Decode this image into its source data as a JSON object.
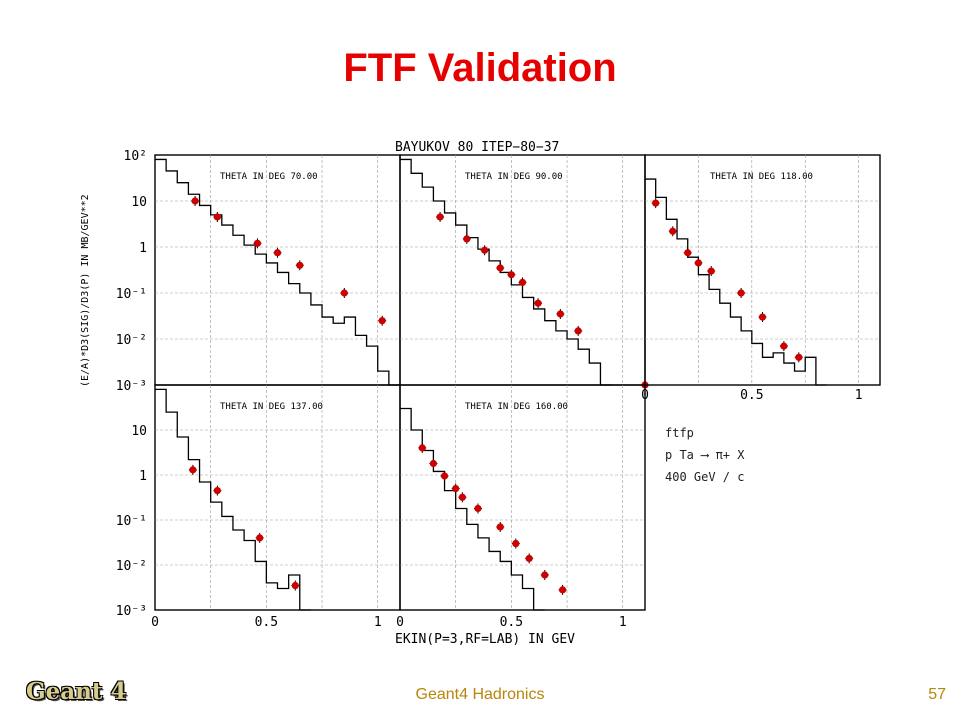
{
  "slide": {
    "title": "FTF Validation",
    "logo": "Geant 4",
    "footer": "Geant4 Hadronics",
    "page_number": "57"
  },
  "chart_data": {
    "type": "scatter",
    "header": "BAYUKOV 80    ITEP−80−37",
    "ylabel": "(E/A)*D3(SIG)/D3(P) IN MB/GEV**2",
    "xlabel": "EKIN(P=3,RF=LAB) IN GEV",
    "y_log_scale": true,
    "ylim": [
      0.001,
      100
    ],
    "xlim": [
      0,
      1.1
    ],
    "y_tick_labels": [
      "10²",
      "10",
      "1",
      "10⁻¹",
      "10⁻²",
      "10⁻³"
    ],
    "x_tick_labels": [
      "0",
      "0.5",
      "1"
    ],
    "grid": true,
    "legend": {
      "position": "bottom-right",
      "lines": [
        "ftfp",
        "p Ta  ⟶  π+ X",
        "400 GeV / c"
      ]
    },
    "colors": {
      "data_points": "#cc0000",
      "model": "#000000",
      "grid": "#9a9a9a"
    },
    "panels": [
      {
        "label": "THETA IN DEG   70.00",
        "data": [
          [
            0.18,
            10
          ],
          [
            0.28,
            4.5
          ],
          [
            0.46,
            1.2
          ],
          [
            0.55,
            0.75
          ],
          [
            0.65,
            0.4
          ],
          [
            0.85,
            0.1
          ],
          [
            1.02,
            0.025
          ]
        ],
        "model": [
          [
            0,
            80
          ],
          [
            0.05,
            45
          ],
          [
            0.1,
            25
          ],
          [
            0.15,
            14
          ],
          [
            0.2,
            8
          ],
          [
            0.25,
            5
          ],
          [
            0.3,
            3
          ],
          [
            0.35,
            1.8
          ],
          [
            0.4,
            1.1
          ],
          [
            0.45,
            0.7
          ],
          [
            0.5,
            0.45
          ],
          [
            0.55,
            0.28
          ],
          [
            0.6,
            0.16
          ],
          [
            0.65,
            0.1
          ],
          [
            0.7,
            0.055
          ],
          [
            0.75,
            0.03
          ],
          [
            0.8,
            0.022
          ],
          [
            0.85,
            0.03
          ],
          [
            0.9,
            0.012
          ],
          [
            0.95,
            0.007
          ],
          [
            1.0,
            0.002
          ],
          [
            1.05,
            0.001
          ]
        ]
      },
      {
        "label": "THETA IN DEG   90.00",
        "data": [
          [
            0.18,
            4.5
          ],
          [
            0.3,
            1.5
          ],
          [
            0.38,
            0.85
          ],
          [
            0.45,
            0.35
          ],
          [
            0.5,
            0.25
          ],
          [
            0.55,
            0.17
          ],
          [
            0.62,
            0.06
          ],
          [
            0.72,
            0.035
          ],
          [
            0.8,
            0.015
          ],
          [
            1.1,
            0.001
          ]
        ],
        "model": [
          [
            0,
            80
          ],
          [
            0.05,
            40
          ],
          [
            0.1,
            20
          ],
          [
            0.15,
            10
          ],
          [
            0.2,
            5.5
          ],
          [
            0.25,
            3
          ],
          [
            0.3,
            1.6
          ],
          [
            0.35,
            0.9
          ],
          [
            0.4,
            0.5
          ],
          [
            0.45,
            0.28
          ],
          [
            0.5,
            0.15
          ],
          [
            0.55,
            0.08
          ],
          [
            0.6,
            0.045
          ],
          [
            0.65,
            0.025
          ],
          [
            0.7,
            0.015
          ],
          [
            0.75,
            0.01
          ],
          [
            0.8,
            0.006
          ],
          [
            0.85,
            0.003
          ],
          [
            0.9,
            0.001
          ]
        ]
      },
      {
        "label": "THETA IN DEG   118.00",
        "data": [
          [
            0.05,
            9
          ],
          [
            0.13,
            2.2
          ],
          [
            0.2,
            0.75
          ],
          [
            0.25,
            0.45
          ],
          [
            0.31,
            0.3
          ],
          [
            0.45,
            0.1
          ],
          [
            0.55,
            0.03
          ],
          [
            0.65,
            0.007
          ],
          [
            0.72,
            0.004
          ]
        ],
        "model": [
          [
            0,
            30
          ],
          [
            0.05,
            12
          ],
          [
            0.1,
            4
          ],
          [
            0.15,
            1.5
          ],
          [
            0.2,
            0.6
          ],
          [
            0.25,
            0.25
          ],
          [
            0.3,
            0.12
          ],
          [
            0.35,
            0.06
          ],
          [
            0.4,
            0.03
          ],
          [
            0.45,
            0.015
          ],
          [
            0.5,
            0.008
          ],
          [
            0.55,
            0.004
          ],
          [
            0.6,
            0.005
          ],
          [
            0.65,
            0.003
          ],
          [
            0.7,
            0.002
          ],
          [
            0.75,
            0.004
          ],
          [
            0.8,
            0.001
          ]
        ]
      },
      {
        "label": "THETA IN DEG   137.00",
        "data": [
          [
            0.17,
            1.3
          ],
          [
            0.28,
            0.45
          ],
          [
            0.47,
            0.04
          ],
          [
            0.63,
            0.0035
          ]
        ],
        "model": [
          [
            0,
            80
          ],
          [
            0.05,
            25
          ],
          [
            0.1,
            7
          ],
          [
            0.15,
            2.2
          ],
          [
            0.2,
            0.7
          ],
          [
            0.25,
            0.25
          ],
          [
            0.3,
            0.12
          ],
          [
            0.35,
            0.06
          ],
          [
            0.4,
            0.035
          ],
          [
            0.45,
            0.012
          ],
          [
            0.5,
            0.004
          ],
          [
            0.55,
            0.003
          ],
          [
            0.6,
            0.006
          ],
          [
            0.65,
            0.001
          ]
        ]
      },
      {
        "label": "THETA IN DEG   160.00",
        "data": [
          [
            0.1,
            4
          ],
          [
            0.15,
            1.8
          ],
          [
            0.2,
            0.95
          ],
          [
            0.25,
            0.5
          ],
          [
            0.28,
            0.32
          ],
          [
            0.35,
            0.18
          ],
          [
            0.45,
            0.07
          ],
          [
            0.52,
            0.03
          ],
          [
            0.58,
            0.014
          ],
          [
            0.65,
            0.006
          ],
          [
            0.73,
            0.0028
          ]
        ],
        "model": [
          [
            0,
            30
          ],
          [
            0.05,
            10
          ],
          [
            0.1,
            3.5
          ],
          [
            0.15,
            1.2
          ],
          [
            0.2,
            0.45
          ],
          [
            0.25,
            0.18
          ],
          [
            0.3,
            0.08
          ],
          [
            0.35,
            0.04
          ],
          [
            0.4,
            0.02
          ],
          [
            0.45,
            0.012
          ],
          [
            0.5,
            0.006
          ],
          [
            0.55,
            0.003
          ],
          [
            0.6,
            0.001
          ]
        ]
      }
    ]
  }
}
